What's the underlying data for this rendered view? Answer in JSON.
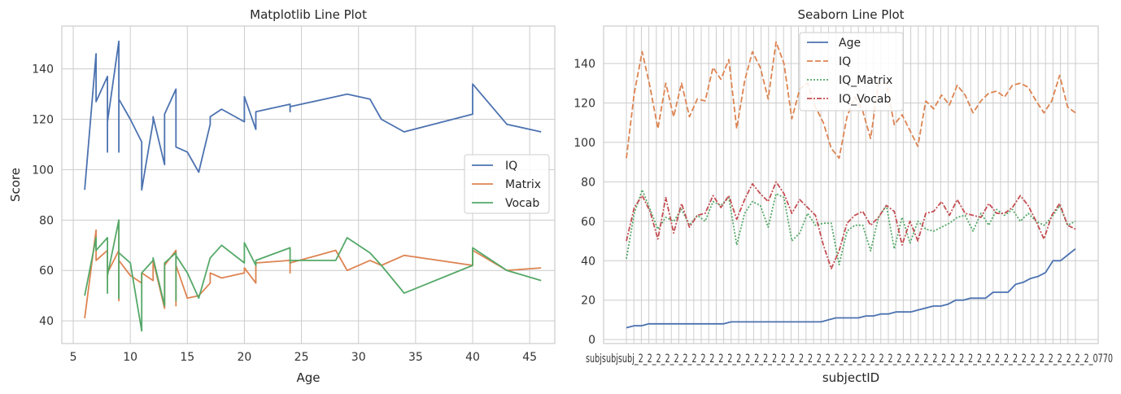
{
  "chart_data": [
    {
      "type": "line",
      "title": "Matplotlib Line Plot",
      "xlabel": "Age",
      "ylabel": "Score",
      "xlim": [
        4,
        47.2
      ],
      "ylim": [
        31,
        157
      ],
      "xticks": [
        5,
        10,
        15,
        20,
        25,
        30,
        35,
        40,
        45
      ],
      "yticks": [
        40,
        60,
        80,
        100,
        120,
        140
      ],
      "x": [
        6,
        7,
        7,
        8,
        8,
        8,
        8,
        9,
        9,
        9,
        9,
        9,
        9,
        10,
        11,
        11,
        12,
        12,
        13,
        13,
        14,
        14,
        14,
        15,
        16,
        17,
        17,
        18,
        20,
        20,
        21,
        21,
        21,
        24,
        24,
        24,
        28,
        29,
        31,
        32,
        34,
        40,
        40,
        43,
        46
      ],
      "series": [
        {
          "name": "IQ",
          "color": "#4c72b0",
          "values": [
            92,
            146,
            127,
            137,
            107,
            131,
            119,
            151,
            110,
            132,
            107,
            140,
            128,
            120,
            111,
            92,
            119,
            121,
            102,
            122,
            132,
            113,
            109,
            107,
            99,
            118,
            121,
            124,
            119,
            129,
            116,
            122,
            123,
            126,
            123,
            125,
            129,
            130,
            128,
            120,
            115,
            122,
            134,
            118,
            115
          ]
        },
        {
          "name": "Matrix",
          "color": "#dd8452",
          "values": [
            41,
            76,
            64,
            68,
            57,
            68,
            59,
            68,
            48,
            78,
            57,
            72,
            64,
            58,
            55,
            59,
            56,
            64,
            45,
            62,
            68,
            46,
            62,
            49,
            50,
            55,
            59,
            57,
            59,
            61,
            55,
            62,
            63,
            64,
            59,
            63,
            68,
            60,
            64,
            62,
            66,
            62,
            68,
            60,
            61
          ]
        },
        {
          "name": "Vocab",
          "color": "#55a868",
          "values": [
            50,
            73,
            68,
            73,
            51,
            69,
            58,
            80,
            49,
            79,
            49,
            70,
            67,
            63,
            36,
            59,
            64,
            65,
            46,
            63,
            67,
            48,
            66,
            59,
            49,
            65,
            65,
            70,
            63,
            71,
            62,
            63,
            64,
            69,
            63,
            64,
            64,
            73,
            67,
            62,
            51,
            62,
            69,
            60,
            56
          ]
        }
      ],
      "legend": "center-right"
    },
    {
      "type": "line",
      "title": "Seaborn Line Plot",
      "xlabel": "subjectID",
      "ylabel": "",
      "ylim": [
        -2,
        159
      ],
      "yticks": [
        0,
        20,
        40,
        60,
        80,
        100,
        120,
        140
      ],
      "x_tick_text": "subjsubjsubj_2_2_2_2_2_2_2_2_2_2_2_2_2_2_2_2_2_2_2_2_2_2_2_2_2_2_2_2_2_2_2_2_2_2_2_2_2_2_2_2_2_2_2_2_2_2_2_2_2_2_2_0770",
      "series": [
        {
          "name": "Age",
          "color": "#4c72b0",
          "dash": "solid",
          "values": [
            6,
            7,
            7,
            8,
            8,
            8,
            8,
            8,
            8,
            8,
            8,
            8,
            8,
            8,
            9,
            9,
            9,
            9,
            9,
            9,
            9,
            9,
            9,
            9,
            9,
            9,
            9,
            10,
            11,
            11,
            11,
            11,
            12,
            12,
            13,
            13,
            14,
            14,
            14,
            15,
            16,
            17,
            17,
            18,
            20,
            20,
            21,
            21,
            21,
            24,
            24,
            24,
            28,
            29,
            31,
            32,
            34,
            40,
            40,
            43,
            46
          ]
        },
        {
          "name": "IQ",
          "color": "#dd8452",
          "dash": "dashed",
          "values": [
            92,
            125,
            146,
            128,
            107,
            130,
            113,
            130,
            113,
            122,
            121,
            138,
            132,
            142,
            107,
            131,
            146,
            138,
            122,
            151,
            140,
            112,
            127,
            130,
            118,
            110,
            97,
            92,
            113,
            123,
            116,
            102,
            130,
            130,
            109,
            114,
            106,
            98,
            121,
            117,
            124,
            119,
            129,
            124,
            115,
            121,
            125,
            126,
            123,
            129,
            130,
            128,
            121,
            115,
            121,
            134,
            118,
            115
          ]
        },
        {
          "name": "IQ_Matrix",
          "color": "#55a868",
          "dash": "dotted",
          "values": [
            41,
            64,
            76,
            66,
            56,
            62,
            60,
            66,
            58,
            63,
            60,
            70,
            68,
            72,
            48,
            64,
            70,
            68,
            57,
            74,
            72,
            50,
            54,
            64,
            58,
            59,
            59,
            38,
            55,
            58,
            58,
            45,
            62,
            68,
            46,
            62,
            49,
            60,
            56,
            55,
            57,
            59,
            62,
            63,
            55,
            64,
            58,
            66,
            63,
            66,
            60,
            64,
            60,
            58,
            62,
            68,
            58,
            60
          ]
        },
        {
          "name": "IQ_Vocab",
          "color": "#c44e52",
          "dash": "dashdot",
          "values": [
            50,
            67,
            73,
            65,
            51,
            72,
            54,
            69,
            57,
            63,
            64,
            73,
            67,
            73,
            61,
            71,
            79,
            74,
            70,
            80,
            74,
            64,
            71,
            67,
            63,
            48,
            36,
            45,
            59,
            63,
            65,
            58,
            62,
            68,
            65,
            48,
            60,
            50,
            64,
            65,
            70,
            63,
            71,
            64,
            63,
            62,
            69,
            64,
            64,
            67,
            73,
            68,
            60,
            51,
            63,
            69,
            58,
            56
          ]
        }
      ],
      "legend": "upper-center"
    }
  ]
}
